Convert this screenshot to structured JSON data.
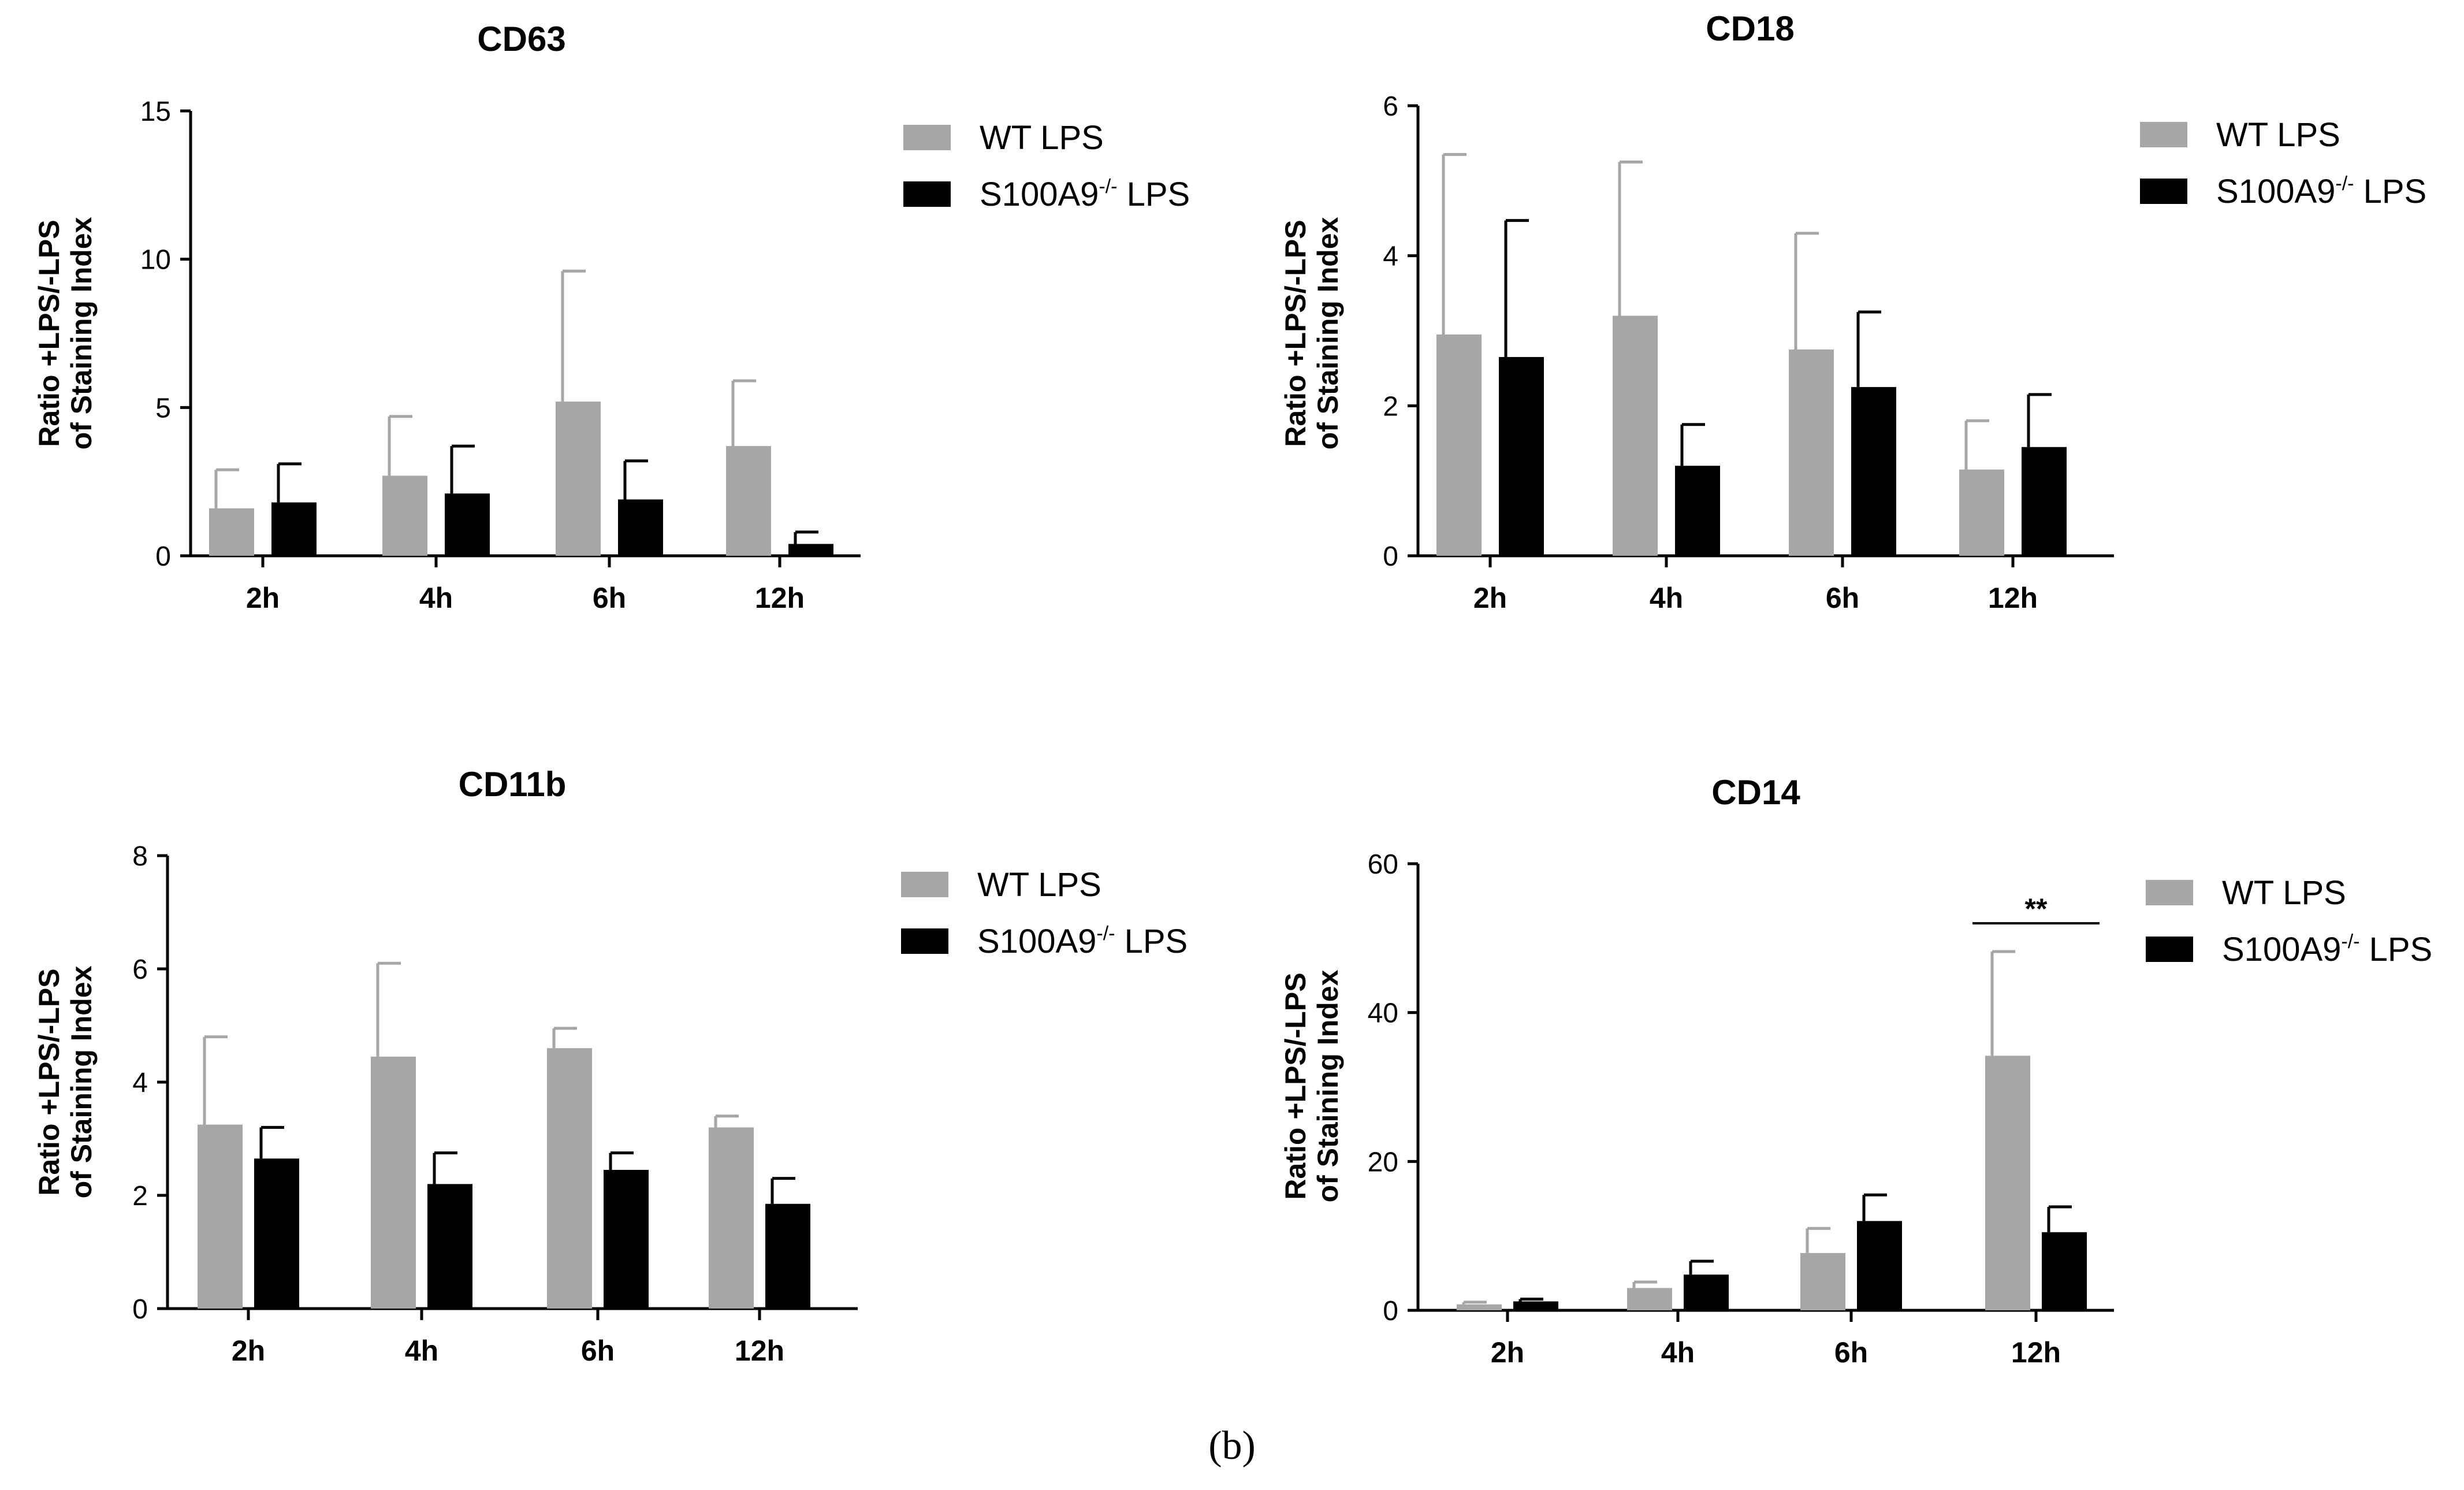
{
  "figure_label": "(b)",
  "colors": {
    "wt": "#a6a6a6",
    "ko": "#000000",
    "axis": "#000000"
  },
  "chart_data": [
    {
      "type": "bar",
      "id": "cd63",
      "title": "CD63",
      "ylabel_line1": "Ratio +LPS/-LPS",
      "ylabel_line2": "of Staining Index",
      "xlabel": "",
      "categories": [
        "2h",
        "4h",
        "6h",
        "12h"
      ],
      "ylim": [
        0,
        15
      ],
      "yticks": [
        0,
        5,
        10,
        15
      ],
      "legend": {
        "position": "top-right",
        "wt_label": "WT LPS",
        "ko_label_prefix": "S100A9",
        "ko_label_sup": "-/-",
        "ko_label_suffix": " LPS"
      },
      "series": [
        {
          "name": "WT LPS",
          "values": [
            1.6,
            2.7,
            5.2,
            3.7
          ],
          "errors": [
            1.3,
            2.0,
            4.4,
            2.2
          ]
        },
        {
          "name": "S100A9-/- LPS",
          "values": [
            1.8,
            2.1,
            1.9,
            0.4
          ],
          "errors": [
            1.3,
            1.6,
            1.3,
            0.4
          ]
        }
      ],
      "annotations": []
    },
    {
      "type": "bar",
      "id": "cd18",
      "title": "CD18",
      "ylabel_line1": "Ratio +LPS/-LPS",
      "ylabel_line2": "of Staining Index",
      "xlabel": "",
      "categories": [
        "2h",
        "4h",
        "6h",
        "12h"
      ],
      "ylim": [
        0,
        6
      ],
      "yticks": [
        0,
        2,
        4,
        6
      ],
      "legend": {
        "position": "top-right",
        "wt_label": "WT LPS",
        "ko_label_prefix": "S100A9",
        "ko_label_sup": "-/-",
        "ko_label_suffix": " LPS"
      },
      "series": [
        {
          "name": "WT LPS",
          "values": [
            2.95,
            3.2,
            2.75,
            1.15
          ],
          "errors": [
            2.4,
            2.05,
            1.55,
            0.65
          ]
        },
        {
          "name": "S100A9-/- LPS",
          "values": [
            2.65,
            1.2,
            2.25,
            1.45
          ],
          "errors": [
            1.82,
            0.55,
            1.0,
            0.7
          ]
        }
      ],
      "annotations": []
    },
    {
      "type": "bar",
      "id": "cd11b",
      "title": "CD11b",
      "ylabel_line1": "Ratio +LPS/-LPS",
      "ylabel_line2": "of Staining Index",
      "xlabel": "",
      "categories": [
        "2h",
        "4h",
        "6h",
        "12h"
      ],
      "ylim": [
        0,
        8
      ],
      "yticks": [
        0,
        2,
        4,
        6,
        8
      ],
      "legend": {
        "position": "top-right",
        "wt_label": "WT LPS",
        "ko_label_prefix": "S100A9",
        "ko_label_sup": "-/-",
        "ko_label_suffix": " LPS"
      },
      "series": [
        {
          "name": "WT LPS",
          "values": [
            3.25,
            4.45,
            4.6,
            3.2
          ],
          "errors": [
            1.55,
            1.65,
            0.35,
            0.2
          ]
        },
        {
          "name": "S100A9-/- LPS",
          "values": [
            2.65,
            2.2,
            2.45,
            1.85
          ],
          "errors": [
            0.55,
            0.55,
            0.3,
            0.45
          ]
        }
      ],
      "annotations": []
    },
    {
      "type": "bar",
      "id": "cd14",
      "title": "CD14",
      "ylabel_line1": "Ratio +LPS/-LPS",
      "ylabel_line2": "of Staining Index",
      "xlabel": "",
      "categories": [
        "2h",
        "4h",
        "6h",
        "12h"
      ],
      "ylim": [
        0,
        60
      ],
      "yticks": [
        0,
        20,
        40,
        60
      ],
      "legend": {
        "position": "top-right",
        "wt_label": "WT LPS",
        "ko_label_prefix": "S100A9",
        "ko_label_sup": "-/-",
        "ko_label_suffix": " LPS"
      },
      "series": [
        {
          "name": "WT LPS",
          "values": [
            0.8,
            3.0,
            7.7,
            34.2
          ],
          "errors": [
            0.3,
            0.8,
            3.3,
            14.0
          ]
        },
        {
          "name": "S100A9-/- LPS",
          "values": [
            1.2,
            4.8,
            12.0,
            10.5
          ],
          "errors": [
            0.3,
            1.8,
            3.5,
            3.4
          ]
        }
      ],
      "annotations": [
        {
          "text": "**",
          "category": "12h"
        }
      ]
    }
  ]
}
